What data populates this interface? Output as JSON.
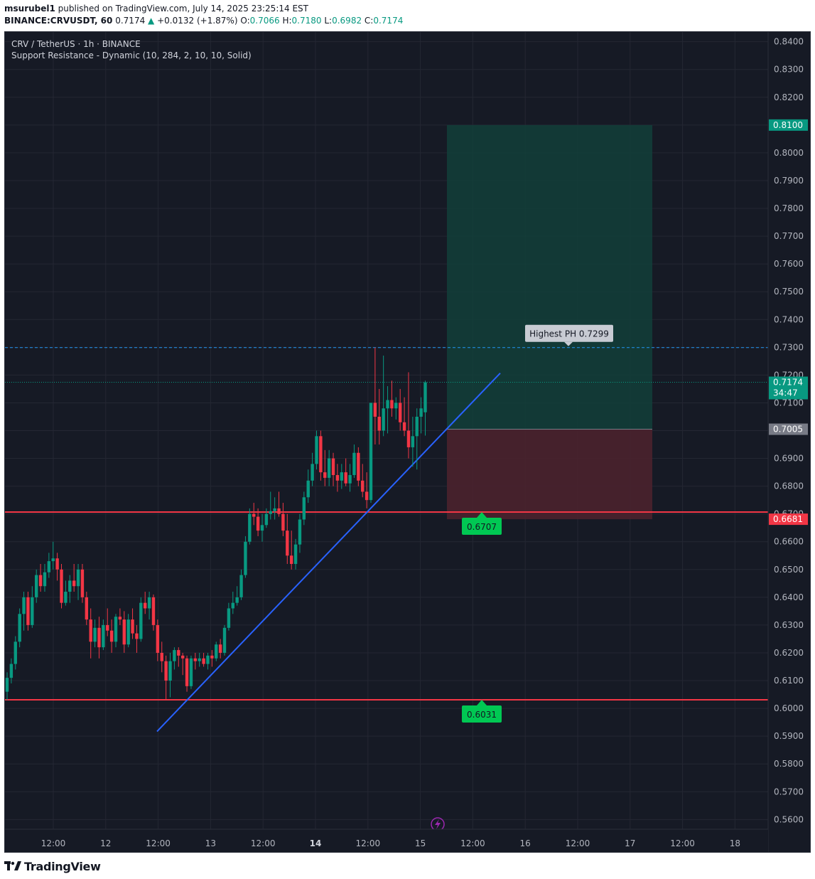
{
  "header": {
    "author": "msurubel1",
    "published_text": "published on TradingView.com, July 14, 2025 23:25:14 EST"
  },
  "ohlc": {
    "symbol": "BINANCE:CRVUSDT, 60",
    "last": "0.7174",
    "change": "+0.0132 (+1.87%)",
    "o_label": "O:",
    "o": "0.7066",
    "h_label": "H:",
    "h": "0.7180",
    "l_label": "L:",
    "l": "0.6982",
    "c_label": "C:",
    "c": "0.7174"
  },
  "legend": {
    "title": "CRV / TetherUS · 1h · BINANCE",
    "indicator": "Support Resistance - Dynamic (10, 284, 2, 10, 10, Solid)"
  },
  "footer": {
    "brand": "TradingView"
  },
  "colors": {
    "up": "#089981",
    "down": "#f23645",
    "trendline": "#2962ff",
    "level": "#f23645",
    "target_zone": "#12403a",
    "stop_zone": "#4a222e",
    "badge_green": "#00c853",
    "label_grey": "#d1d4dc"
  },
  "chart_data": {
    "type": "candlestick",
    "ylim": [
      0.5565,
      0.8435
    ],
    "y_ticks": [
      "0.5600",
      "0.5700",
      "0.5800",
      "0.5900",
      "0.6000",
      "0.6100",
      "0.6200",
      "0.6300",
      "0.6400",
      "0.6500",
      "0.6600",
      "0.6700",
      "0.6800",
      "0.6900",
      "0.7000",
      "0.7100",
      "0.7200",
      "0.7300",
      "0.7400",
      "0.7500",
      "0.7600",
      "0.7700",
      "0.7800",
      "0.7900",
      "0.8000",
      "0.8100",
      "0.8200",
      "0.8300",
      "0.8400"
    ],
    "x_ticks": [
      {
        "label": "12:00",
        "bold": false
      },
      {
        "label": "12",
        "bold": false
      },
      {
        "label": "12:00",
        "bold": false
      },
      {
        "label": "13",
        "bold": false
      },
      {
        "label": "12:00",
        "bold": false
      },
      {
        "label": "14",
        "bold": true
      },
      {
        "label": "12:00",
        "bold": false
      },
      {
        "label": "15",
        "bold": false
      },
      {
        "label": "12:00",
        "bold": false
      },
      {
        "label": "16",
        "bold": false
      },
      {
        "label": "12:00",
        "bold": false
      },
      {
        "label": "17",
        "bold": false
      },
      {
        "label": "12:00",
        "bold": false
      },
      {
        "label": "18",
        "bold": false
      }
    ],
    "levels": [
      {
        "name": "resistance",
        "price": 0.6707,
        "label": "0.6707"
      },
      {
        "name": "support",
        "price": 0.6031,
        "label": "0.6031"
      }
    ],
    "axis_badges": [
      {
        "name": "target",
        "price": 0.81,
        "label": "0.8100",
        "style": "green"
      },
      {
        "name": "last-price",
        "price": 0.7174,
        "label": "0.7174",
        "sub": "34:47",
        "style": "green"
      },
      {
        "name": "entry",
        "price": 0.7005,
        "label": "0.7005",
        "style": "grey"
      },
      {
        "name": "stop",
        "price": 0.6681,
        "label": "0.6681",
        "style": "red"
      }
    ],
    "highest_ph": {
      "price": 0.7299,
      "label": "Highest PH 0.7299"
    },
    "last_price": 0.7174,
    "position": {
      "entry": 0.7005,
      "target": 0.81,
      "stop": 0.6681
    },
    "trendline": {
      "from": 0.5917,
      "to": 0.7207
    },
    "candles": [
      [
        0.606,
        0.613,
        0.603,
        0.611
      ],
      [
        0.611,
        0.618,
        0.609,
        0.616
      ],
      [
        0.616,
        0.626,
        0.614,
        0.624
      ],
      [
        0.624,
        0.636,
        0.622,
        0.634
      ],
      [
        0.634,
        0.642,
        0.628,
        0.64
      ],
      [
        0.64,
        0.642,
        0.628,
        0.63
      ],
      [
        0.63,
        0.644,
        0.629,
        0.64
      ],
      [
        0.64,
        0.65,
        0.638,
        0.648
      ],
      [
        0.648,
        0.652,
        0.642,
        0.644
      ],
      [
        0.644,
        0.652,
        0.642,
        0.649
      ],
      [
        0.649,
        0.656,
        0.647,
        0.653
      ],
      [
        0.653,
        0.66,
        0.65,
        0.654
      ],
      [
        0.654,
        0.656,
        0.646,
        0.65
      ],
      [
        0.65,
        0.652,
        0.636,
        0.638
      ],
      [
        0.638,
        0.646,
        0.637,
        0.642
      ],
      [
        0.642,
        0.648,
        0.638,
        0.646
      ],
      [
        0.646,
        0.652,
        0.642,
        0.644
      ],
      [
        0.644,
        0.652,
        0.639,
        0.65
      ],
      [
        0.65,
        0.652,
        0.638,
        0.64
      ],
      [
        0.64,
        0.642,
        0.63,
        0.632
      ],
      [
        0.632,
        0.636,
        0.618,
        0.624
      ],
      [
        0.624,
        0.632,
        0.622,
        0.629
      ],
      [
        0.629,
        0.633,
        0.618,
        0.622
      ],
      [
        0.622,
        0.632,
        0.621,
        0.63
      ],
      [
        0.63,
        0.636,
        0.626,
        0.628
      ],
      [
        0.628,
        0.632,
        0.62,
        0.624
      ],
      [
        0.624,
        0.634,
        0.622,
        0.633
      ],
      [
        0.633,
        0.636,
        0.63,
        0.632
      ],
      [
        0.632,
        0.635,
        0.62,
        0.623
      ],
      [
        0.623,
        0.634,
        0.622,
        0.632
      ],
      [
        0.632,
        0.636,
        0.625,
        0.627
      ],
      [
        0.627,
        0.63,
        0.62,
        0.625
      ],
      [
        0.625,
        0.64,
        0.624,
        0.638
      ],
      [
        0.638,
        0.642,
        0.634,
        0.636
      ],
      [
        0.636,
        0.642,
        0.632,
        0.64
      ],
      [
        0.64,
        0.641,
        0.628,
        0.63
      ],
      [
        0.63,
        0.632,
        0.617,
        0.62
      ],
      [
        0.62,
        0.624,
        0.613,
        0.617
      ],
      [
        0.617,
        0.619,
        0.603,
        0.61
      ],
      [
        0.61,
        0.62,
        0.604,
        0.617
      ],
      [
        0.617,
        0.622,
        0.614,
        0.621
      ],
      [
        0.621,
        0.622,
        0.615,
        0.619
      ],
      [
        0.619,
        0.62,
        0.612,
        0.618
      ],
      [
        0.618,
        0.619,
        0.606,
        0.608
      ],
      [
        0.608,
        0.619,
        0.607,
        0.618
      ],
      [
        0.618,
        0.62,
        0.614,
        0.617
      ],
      [
        0.617,
        0.62,
        0.615,
        0.618
      ],
      [
        0.618,
        0.62,
        0.615,
        0.616
      ],
      [
        0.616,
        0.62,
        0.614,
        0.619
      ],
      [
        0.619,
        0.621,
        0.615,
        0.618
      ],
      [
        0.618,
        0.624,
        0.617,
        0.623
      ],
      [
        0.623,
        0.625,
        0.618,
        0.62
      ],
      [
        0.62,
        0.63,
        0.619,
        0.629
      ],
      [
        0.629,
        0.638,
        0.628,
        0.636
      ],
      [
        0.636,
        0.642,
        0.634,
        0.638
      ],
      [
        0.638,
        0.644,
        0.637,
        0.64
      ],
      [
        0.64,
        0.65,
        0.639,
        0.648
      ],
      [
        0.648,
        0.662,
        0.647,
        0.66
      ],
      [
        0.66,
        0.672,
        0.659,
        0.67
      ],
      [
        0.67,
        0.674,
        0.666,
        0.669
      ],
      [
        0.669,
        0.672,
        0.662,
        0.664
      ],
      [
        0.664,
        0.67,
        0.66,
        0.666
      ],
      [
        0.666,
        0.672,
        0.665,
        0.67
      ],
      [
        0.67,
        0.678,
        0.668,
        0.671
      ],
      [
        0.671,
        0.676,
        0.668,
        0.672
      ],
      [
        0.672,
        0.678,
        0.669,
        0.67
      ],
      [
        0.67,
        0.674,
        0.662,
        0.664
      ],
      [
        0.664,
        0.67,
        0.652,
        0.655
      ],
      [
        0.655,
        0.664,
        0.65,
        0.652
      ],
      [
        0.652,
        0.661,
        0.65,
        0.659
      ],
      [
        0.659,
        0.67,
        0.656,
        0.668
      ],
      [
        0.668,
        0.678,
        0.666,
        0.676
      ],
      [
        0.676,
        0.686,
        0.674,
        0.682
      ],
      [
        0.682,
        0.692,
        0.68,
        0.688
      ],
      [
        0.688,
        0.7,
        0.686,
        0.698
      ],
      [
        0.698,
        0.7,
        0.682,
        0.685
      ],
      [
        0.685,
        0.693,
        0.68,
        0.683
      ],
      [
        0.683,
        0.693,
        0.68,
        0.69
      ],
      [
        0.69,
        0.692,
        0.68,
        0.684
      ],
      [
        0.684,
        0.688,
        0.678,
        0.682
      ],
      [
        0.682,
        0.688,
        0.679,
        0.685
      ],
      [
        0.685,
        0.69,
        0.68,
        0.681
      ],
      [
        0.681,
        0.688,
        0.678,
        0.684
      ],
      [
        0.684,
        0.695,
        0.683,
        0.692
      ],
      [
        0.692,
        0.694,
        0.68,
        0.682
      ],
      [
        0.682,
        0.688,
        0.676,
        0.678
      ],
      [
        0.678,
        0.685,
        0.672,
        0.675
      ],
      [
        0.675,
        0.71,
        0.674,
        0.71
      ],
      [
        0.71,
        0.7299,
        0.695,
        0.705
      ],
      [
        0.705,
        0.715,
        0.695,
        0.7
      ],
      [
        0.7,
        0.727,
        0.698,
        0.708
      ],
      [
        0.708,
        0.716,
        0.699,
        0.711
      ],
      [
        0.711,
        0.718,
        0.705,
        0.708
      ],
      [
        0.708,
        0.712,
        0.704,
        0.71
      ],
      [
        0.71,
        0.715,
        0.7,
        0.703
      ],
      [
        0.703,
        0.712,
        0.698,
        0.7
      ],
      [
        0.7,
        0.721,
        0.69,
        0.694
      ],
      [
        0.694,
        0.705,
        0.687,
        0.698
      ],
      [
        0.698,
        0.708,
        0.686,
        0.705
      ],
      [
        0.705,
        0.712,
        0.699,
        0.708
      ],
      [
        0.7066,
        0.718,
        0.6982,
        0.7174
      ]
    ]
  }
}
